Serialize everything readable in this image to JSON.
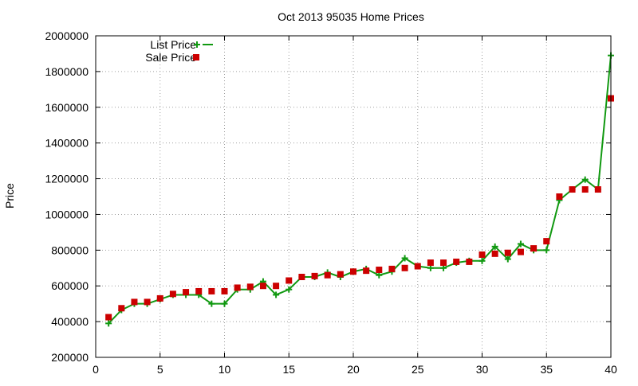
{
  "chart_data": {
    "type": "line",
    "title": "Oct 2013 95035 Home Prices",
    "xlabel": "",
    "ylabel": "Price",
    "xlim": [
      0,
      40
    ],
    "ylim": [
      200000,
      2000000
    ],
    "xticks": [
      0,
      5,
      10,
      15,
      20,
      25,
      30,
      35,
      40
    ],
    "yticks": [
      200000,
      400000,
      600000,
      800000,
      1000000,
      1200000,
      1400000,
      1600000,
      1800000,
      2000000
    ],
    "grid": true,
    "legend_position": "top-left",
    "series": [
      {
        "name": "List Price",
        "style": "line+cross",
        "color": "#119911",
        "x": [
          1,
          2,
          3,
          4,
          5,
          6,
          7,
          8,
          9,
          10,
          11,
          12,
          13,
          14,
          15,
          16,
          17,
          18,
          19,
          20,
          21,
          22,
          23,
          24,
          25,
          26,
          27,
          28,
          29,
          30,
          31,
          32,
          33,
          34,
          35,
          36,
          37,
          38,
          39,
          40
        ],
        "values": [
          390000,
          465000,
          500000,
          500000,
          525000,
          550000,
          550000,
          550000,
          500000,
          500000,
          580000,
          580000,
          625000,
          550000,
          580000,
          650000,
          650000,
          675000,
          650000,
          680000,
          695000,
          660000,
          680000,
          755000,
          710000,
          700000,
          700000,
          730000,
          740000,
          740000,
          820000,
          750000,
          835000,
          800000,
          800000,
          1080000,
          1140000,
          1195000,
          1140000,
          1890000
        ]
      },
      {
        "name": "Sale Price",
        "style": "square",
        "color": "#cc0000",
        "x": [
          1,
          2,
          3,
          4,
          5,
          6,
          7,
          8,
          9,
          10,
          11,
          12,
          13,
          14,
          15,
          16,
          17,
          18,
          19,
          20,
          21,
          22,
          23,
          24,
          25,
          26,
          27,
          28,
          29,
          30,
          31,
          32,
          33,
          34,
          35,
          36,
          37,
          38,
          39,
          40
        ],
        "values": [
          425000,
          475000,
          510000,
          510000,
          530000,
          555000,
          565000,
          570000,
          570000,
          570000,
          590000,
          595000,
          600000,
          600000,
          630000,
          650000,
          655000,
          660000,
          665000,
          680000,
          685000,
          690000,
          695000,
          700000,
          710000,
          730000,
          730000,
          735000,
          735000,
          775000,
          780000,
          785000,
          790000,
          810000,
          850000,
          1100000,
          1140000,
          1140000,
          1140000,
          1650000
        ]
      }
    ]
  }
}
